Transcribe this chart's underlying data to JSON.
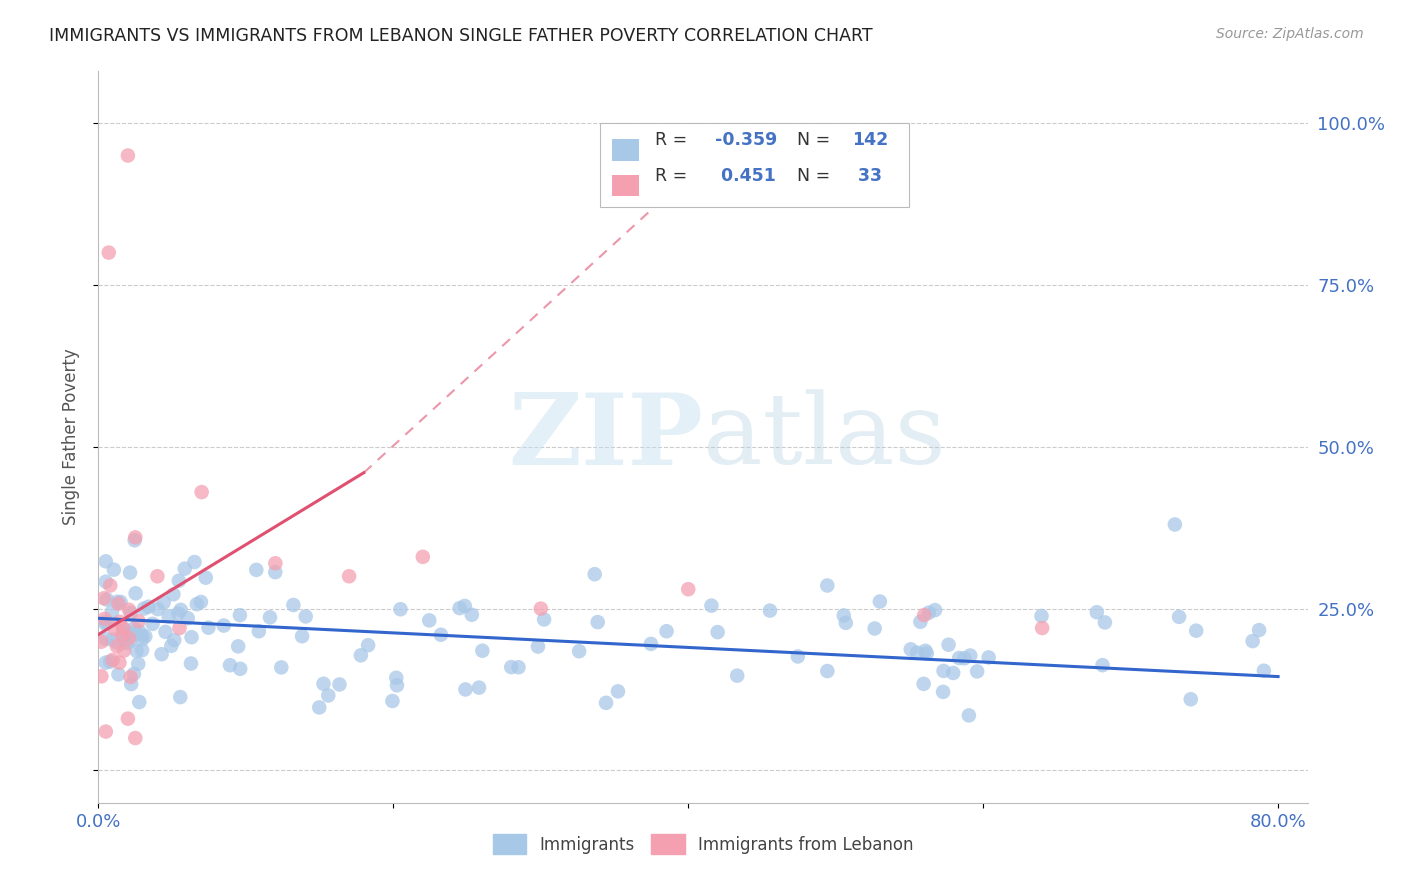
{
  "title": "IMMIGRANTS VS IMMIGRANTS FROM LEBANON SINGLE FATHER POVERTY CORRELATION CHART",
  "source": "Source: ZipAtlas.com",
  "ylabel": "Single Father Poverty",
  "xlim": [
    0.0,
    0.82
  ],
  "ylim": [
    -0.05,
    1.08
  ],
  "xticks": [
    0.0,
    0.8
  ],
  "xticklabels": [
    "0.0%",
    "80.0%"
  ],
  "ytick_positions": [
    0.0,
    0.25,
    0.5,
    0.75,
    1.0
  ],
  "yticklabels_right": [
    "",
    "25.0%",
    "50.0%",
    "75.0%",
    "100.0%"
  ],
  "blue_color": "#a8c8e8",
  "pink_color": "#f4a0b0",
  "blue_line_color": "#3366cc",
  "pink_line_color": "#e05070",
  "R_blue": -0.359,
  "N_blue": 142,
  "R_pink": 0.451,
  "N_pink": 33,
  "legend_label_blue": "Immigrants",
  "legend_label_pink": "Immigrants from Lebanon",
  "title_color": "#222222",
  "axis_label_color": "#555555",
  "tick_label_color": "#4472c4",
  "blue_trend_x0": 0.0,
  "blue_trend_y0": 0.235,
  "blue_trend_x1": 0.8,
  "blue_trend_y1": 0.145,
  "pink_trend_solid_x0": 0.0,
  "pink_trend_solid_y0": 0.21,
  "pink_trend_solid_x1": 0.18,
  "pink_trend_solid_y1": 0.46,
  "pink_trend_dash_x0": 0.18,
  "pink_trend_dash_y0": 0.46,
  "pink_trend_dash_x1": 0.42,
  "pink_trend_dash_y1": 0.96
}
